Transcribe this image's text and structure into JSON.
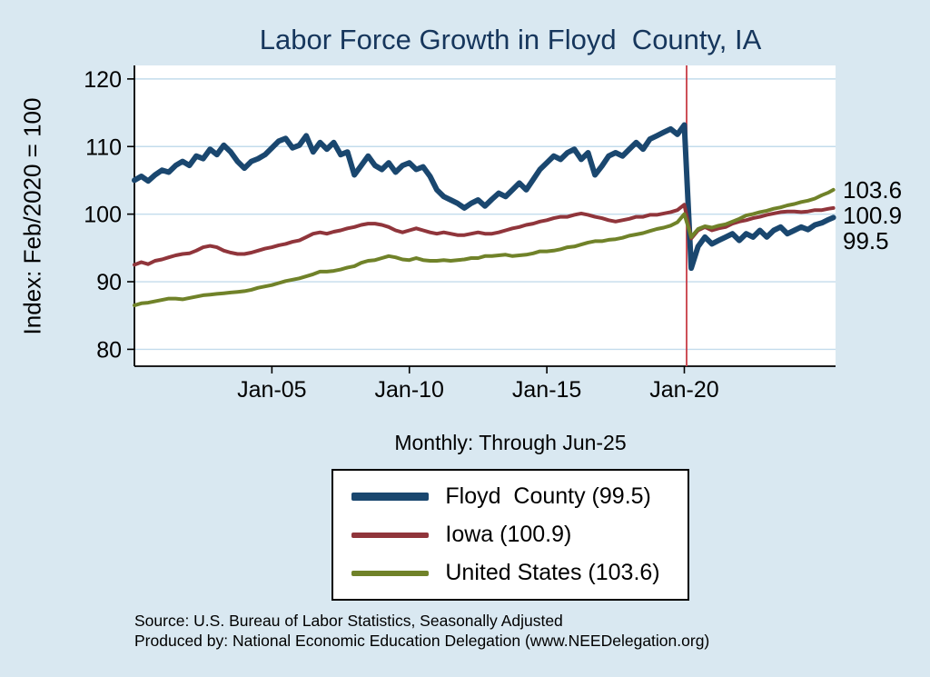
{
  "title": "Labor Force Growth in Floyd  County, IA",
  "subtitle": "Monthly: Through Jun-25",
  "y_axis_label": "Index: Feb/2020 = 100",
  "source_line1": "Source: U.S. Bureau of Labor Statistics, Seasonally Adjusted",
  "source_line2": "Produced by: National Economic Education Delegation (www.NEEDelegation.org)",
  "colors": {
    "background": "#d9e8f1",
    "plot_background": "#ffffff",
    "grid": "#c3dcec",
    "axis": "#000000",
    "title": "#16365c"
  },
  "chart_data": {
    "type": "line",
    "title": "Labor Force Growth in Floyd  County, IA",
    "xlabel": "",
    "ylabel": "Index: Feb/2020 = 100",
    "ylim": [
      77.5,
      122
    ],
    "yticks": [
      80,
      90,
      100,
      110,
      120
    ],
    "x_range": [
      2000.0,
      2025.5
    ],
    "xticks": [
      {
        "v": 2005,
        "label": "Jan-05"
      },
      {
        "v": 2010,
        "label": "Jan-10"
      },
      {
        "v": 2015,
        "label": "Jan-15"
      },
      {
        "v": 2020,
        "label": "Jan-20"
      }
    ],
    "vline": {
      "x": 2020.083,
      "color": "#c83c46"
    },
    "legend_position": "below",
    "grid": true,
    "x": [
      2000.0,
      2000.25,
      2000.5,
      2000.75,
      2001.0,
      2001.25,
      2001.5,
      2001.75,
      2002.0,
      2002.25,
      2002.5,
      2002.75,
      2003.0,
      2003.25,
      2003.5,
      2003.75,
      2004.0,
      2004.25,
      2004.5,
      2004.75,
      2005.0,
      2005.25,
      2005.5,
      2005.75,
      2006.0,
      2006.25,
      2006.5,
      2006.75,
      2007.0,
      2007.25,
      2007.5,
      2007.75,
      2008.0,
      2008.25,
      2008.5,
      2008.75,
      2009.0,
      2009.25,
      2009.5,
      2009.75,
      2010.0,
      2010.25,
      2010.5,
      2010.75,
      2011.0,
      2011.25,
      2011.5,
      2011.75,
      2012.0,
      2012.25,
      2012.5,
      2012.75,
      2013.0,
      2013.25,
      2013.5,
      2013.75,
      2014.0,
      2014.25,
      2014.5,
      2014.75,
      2015.0,
      2015.25,
      2015.5,
      2015.75,
      2016.0,
      2016.25,
      2016.5,
      2016.75,
      2017.0,
      2017.25,
      2017.5,
      2017.75,
      2018.0,
      2018.25,
      2018.5,
      2018.75,
      2019.0,
      2019.25,
      2019.5,
      2019.75,
      2020.0,
      2020.25,
      2020.5,
      2020.75,
      2021.0,
      2021.25,
      2021.5,
      2021.75,
      2022.0,
      2022.25,
      2022.5,
      2022.75,
      2023.0,
      2023.25,
      2023.5,
      2023.75,
      2024.0,
      2024.25,
      2024.5,
      2024.75,
      2025.0,
      2025.25,
      2025.42
    ],
    "series": [
      {
        "name": "Floyd  County (99.5)",
        "end_label": "99.5",
        "color": "#1a476f",
        "linewidth": 6,
        "values": [
          105.0,
          105.6,
          104.9,
          105.8,
          106.5,
          106.2,
          107.2,
          107.8,
          107.2,
          108.6,
          108.2,
          109.6,
          108.8,
          110.2,
          109.2,
          107.8,
          106.8,
          107.8,
          108.2,
          108.8,
          109.8,
          110.8,
          111.2,
          109.8,
          110.2,
          111.6,
          109.2,
          110.6,
          109.6,
          110.6,
          108.8,
          109.2,
          105.8,
          107.2,
          108.6,
          107.2,
          106.6,
          107.6,
          106.2,
          107.2,
          107.6,
          106.6,
          107.0,
          105.6,
          103.6,
          102.6,
          102.1,
          101.6,
          100.9,
          101.6,
          102.1,
          101.2,
          102.2,
          103.1,
          102.6,
          103.6,
          104.6,
          103.6,
          105.1,
          106.6,
          107.6,
          108.6,
          108.1,
          109.1,
          109.6,
          108.1,
          109.1,
          105.8,
          107.1,
          108.6,
          109.1,
          108.6,
          109.6,
          110.6,
          109.6,
          111.1,
          111.6,
          112.1,
          112.6,
          111.8,
          113.2,
          92.0,
          95.2,
          96.6,
          95.6,
          96.1,
          96.6,
          97.1,
          96.1,
          97.1,
          96.6,
          97.6,
          96.6,
          97.6,
          98.1,
          97.1,
          97.6,
          98.1,
          97.7,
          98.4,
          98.7,
          99.2,
          99.5
        ]
      },
      {
        "name": "Iowa (100.9)",
        "end_label": "100.9",
        "color": "#90353b",
        "linewidth": 4,
        "values": [
          92.5,
          92.9,
          92.6,
          93.1,
          93.3,
          93.6,
          93.9,
          94.1,
          94.2,
          94.6,
          95.1,
          95.3,
          95.1,
          94.6,
          94.3,
          94.1,
          94.1,
          94.3,
          94.6,
          94.9,
          95.1,
          95.4,
          95.6,
          95.9,
          96.1,
          96.6,
          97.1,
          97.3,
          97.1,
          97.4,
          97.6,
          97.9,
          98.1,
          98.4,
          98.6,
          98.6,
          98.4,
          98.1,
          97.6,
          97.3,
          97.6,
          97.9,
          97.6,
          97.3,
          97.1,
          97.3,
          97.1,
          96.9,
          96.9,
          97.1,
          97.3,
          97.1,
          97.1,
          97.3,
          97.6,
          97.9,
          98.1,
          98.4,
          98.6,
          98.9,
          99.1,
          99.4,
          99.6,
          99.6,
          99.9,
          100.1,
          99.9,
          99.6,
          99.4,
          99.1,
          98.9,
          99.1,
          99.3,
          99.6,
          99.6,
          99.9,
          99.9,
          100.1,
          100.3,
          100.6,
          101.4,
          96.4,
          97.6,
          98.1,
          97.6,
          97.9,
          98.1,
          98.6,
          98.9,
          99.1,
          99.4,
          99.6,
          99.9,
          100.1,
          100.3,
          100.4,
          100.4,
          100.3,
          100.4,
          100.6,
          100.6,
          100.8,
          100.9
        ]
      },
      {
        "name": "United States (103.6)",
        "end_label": "103.6",
        "color": "#708229",
        "linewidth": 4,
        "values": [
          86.5,
          86.8,
          86.9,
          87.1,
          87.3,
          87.5,
          87.5,
          87.4,
          87.6,
          87.8,
          88.0,
          88.1,
          88.2,
          88.3,
          88.4,
          88.5,
          88.6,
          88.8,
          89.1,
          89.3,
          89.5,
          89.8,
          90.1,
          90.3,
          90.5,
          90.8,
          91.1,
          91.5,
          91.5,
          91.6,
          91.8,
          92.1,
          92.3,
          92.8,
          93.1,
          93.2,
          93.5,
          93.8,
          93.6,
          93.3,
          93.2,
          93.5,
          93.2,
          93.1,
          93.1,
          93.2,
          93.1,
          93.2,
          93.3,
          93.5,
          93.5,
          93.8,
          93.8,
          93.9,
          94.0,
          93.8,
          93.9,
          94.0,
          94.2,
          94.5,
          94.5,
          94.6,
          94.8,
          95.1,
          95.2,
          95.5,
          95.8,
          96.0,
          96.0,
          96.2,
          96.3,
          96.5,
          96.8,
          97.0,
          97.2,
          97.5,
          97.8,
          98.0,
          98.3,
          98.8,
          100.0,
          96.6,
          97.8,
          98.2,
          98.0,
          98.3,
          98.5,
          98.9,
          99.3,
          99.8,
          100.0,
          100.3,
          100.5,
          100.8,
          101.0,
          101.3,
          101.5,
          101.8,
          102.0,
          102.3,
          102.8,
          103.2,
          103.6
        ]
      }
    ]
  }
}
